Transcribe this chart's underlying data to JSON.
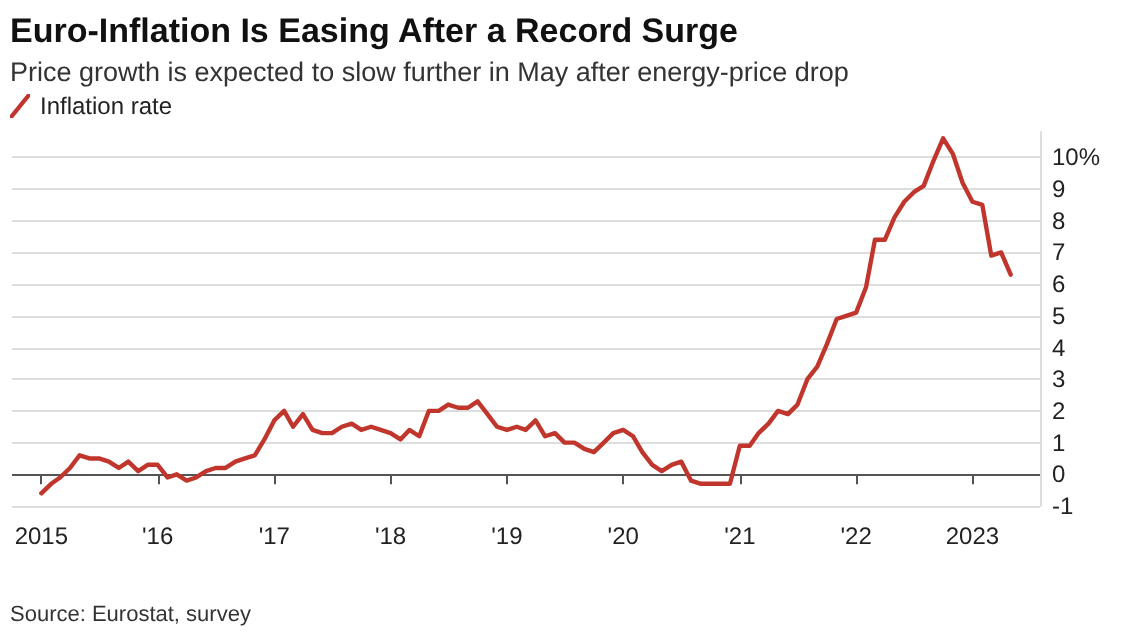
{
  "chart_data": {
    "type": "line",
    "title": "Euro-Inflation Is Easing After a Record Surge",
    "subtitle": "Price growth is expected to slow further in May after energy-price drop",
    "annotations": [
      "Source: Eurostat, survey"
    ],
    "x": [
      "2015-01",
      "2015-02",
      "2015-03",
      "2015-04",
      "2015-05",
      "2015-06",
      "2015-07",
      "2015-08",
      "2015-09",
      "2015-10",
      "2015-11",
      "2015-12",
      "2016-01",
      "2016-02",
      "2016-03",
      "2016-04",
      "2016-05",
      "2016-06",
      "2016-07",
      "2016-08",
      "2016-09",
      "2016-10",
      "2016-11",
      "2016-12",
      "2017-01",
      "2017-02",
      "2017-03",
      "2017-04",
      "2017-05",
      "2017-06",
      "2017-07",
      "2017-08",
      "2017-09",
      "2017-10",
      "2017-11",
      "2017-12",
      "2018-01",
      "2018-02",
      "2018-03",
      "2018-04",
      "2018-05",
      "2018-06",
      "2018-07",
      "2018-08",
      "2018-09",
      "2018-10",
      "2018-11",
      "2018-12",
      "2019-01",
      "2019-02",
      "2019-03",
      "2019-04",
      "2019-05",
      "2019-06",
      "2019-07",
      "2019-08",
      "2019-09",
      "2019-10",
      "2019-11",
      "2019-12",
      "2020-01",
      "2020-02",
      "2020-03",
      "2020-04",
      "2020-05",
      "2020-06",
      "2020-07",
      "2020-08",
      "2020-09",
      "2020-10",
      "2020-11",
      "2020-12",
      "2021-01",
      "2021-02",
      "2021-03",
      "2021-04",
      "2021-05",
      "2021-06",
      "2021-07",
      "2021-08",
      "2021-09",
      "2021-10",
      "2021-11",
      "2021-12",
      "2022-01",
      "2022-02",
      "2022-03",
      "2022-04",
      "2022-05",
      "2022-06",
      "2022-07",
      "2022-08",
      "2022-09",
      "2022-10",
      "2022-11",
      "2022-12",
      "2023-01",
      "2023-02",
      "2023-03",
      "2023-04",
      "2023-05"
    ],
    "series": [
      {
        "name": "Inflation rate",
        "color": "#c0362c",
        "values": [
          -0.6,
          -0.3,
          -0.1,
          0.2,
          0.6,
          0.5,
          0.5,
          0.4,
          0.2,
          0.4,
          0.1,
          0.3,
          0.3,
          -0.1,
          0.0,
          -0.2,
          -0.1,
          0.1,
          0.2,
          0.2,
          0.4,
          0.5,
          0.6,
          1.1,
          1.7,
          2.0,
          1.5,
          1.9,
          1.4,
          1.3,
          1.3,
          1.5,
          1.6,
          1.4,
          1.5,
          1.4,
          1.3,
          1.1,
          1.4,
          1.2,
          2.0,
          2.0,
          2.2,
          2.1,
          2.1,
          2.3,
          1.9,
          1.5,
          1.4,
          1.5,
          1.4,
          1.7,
          1.2,
          1.3,
          1.0,
          1.0,
          0.8,
          0.7,
          1.0,
          1.3,
          1.4,
          1.2,
          0.7,
          0.3,
          0.1,
          0.3,
          0.4,
          -0.2,
          -0.3,
          -0.3,
          -0.3,
          -0.3,
          0.9,
          0.9,
          1.3,
          1.6,
          2.0,
          1.9,
          2.2,
          3.0,
          3.4,
          4.1,
          4.9,
          5.0,
          5.1,
          5.9,
          7.4,
          7.4,
          8.1,
          8.6,
          8.9,
          9.1,
          9.9,
          10.6,
          10.1,
          9.2,
          8.6,
          8.5,
          6.9,
          7.0,
          6.3
        ]
      }
    ],
    "xlim": [
      "2014-10",
      "2023-08"
    ],
    "xticks": [
      {
        "value": "2015",
        "label": "2015"
      },
      {
        "value": "2016",
        "label": "'16"
      },
      {
        "value": "2017",
        "label": "'17"
      },
      {
        "value": "2018",
        "label": "'18"
      },
      {
        "value": "2019",
        "label": "'19"
      },
      {
        "value": "2020",
        "label": "'20"
      },
      {
        "value": "2021",
        "label": "'21"
      },
      {
        "value": "2022",
        "label": "'22"
      },
      {
        "value": "2023",
        "label": "2023"
      }
    ],
    "ylim": [
      -1,
      10.8
    ],
    "yticks": [
      -1,
      0,
      1,
      2,
      3,
      4,
      5,
      6,
      7,
      8,
      9,
      {
        "value": 10,
        "label": "10%"
      }
    ],
    "grid": "y",
    "legend": "top left",
    "marker": "none",
    "line_style": "solid"
  }
}
